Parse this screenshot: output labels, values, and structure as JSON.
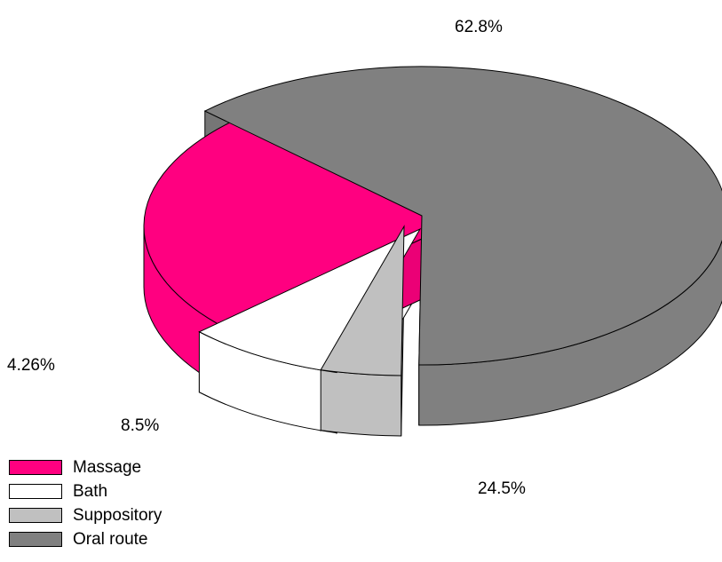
{
  "chart_data": {
    "type": "pie",
    "three_d": true,
    "exploded": true,
    "legend_position": "bottom-left",
    "categories": [
      "Massage",
      "Bath",
      "Suppository",
      "Oral route"
    ],
    "values": [
      24.5,
      8.5,
      4.26,
      62.8
    ],
    "value_labels": [
      "24.5%",
      "8.5%",
      "4.26%",
      "62.8%"
    ],
    "colors": [
      "#ff0080",
      "#ffffff",
      "#c0c0c0",
      "#808080"
    ],
    "outline_color": "#000000"
  }
}
